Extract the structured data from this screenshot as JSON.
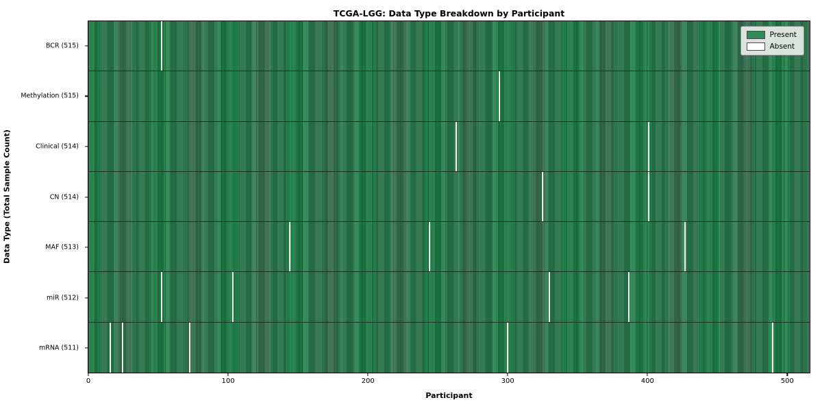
{
  "figure": {
    "title": "TCGA-LGG: Data Type Breakdown by Participant",
    "xlabel": "Participant",
    "ylabel": "Data Type (Total Sample Count)"
  },
  "legend": {
    "items": [
      {
        "name": "present",
        "label": "Present",
        "color": "#2e8b57"
      },
      {
        "name": "absent",
        "label": "Absent",
        "color": "#ffffff"
      }
    ]
  },
  "chart_data": {
    "type": "heatmap",
    "title": "TCGA-LGG: Data Type Breakdown by Participant",
    "xlabel": "Participant",
    "ylabel": "Data Type (Total Sample Count)",
    "x_ticks": [
      0,
      100,
      200,
      300,
      400,
      500
    ],
    "x_range": [
      -0.5,
      516.5
    ],
    "total_participants": 516,
    "present_color": "#2e8b57",
    "absent_color": "#ffffff",
    "grid": false,
    "legend_position": "upper right",
    "rows": [
      {
        "label": "BCR (515)",
        "data_type": "BCR",
        "present_count": 515,
        "missing_participants": [
          52
        ]
      },
      {
        "label": "Methylation (515)",
        "data_type": "Methylation",
        "present_count": 515,
        "missing_participants": [
          294
        ]
      },
      {
        "label": "Clinical (514)",
        "data_type": "Clinical",
        "present_count": 514,
        "missing_participants": [
          263,
          401
        ]
      },
      {
        "label": "CN (514)",
        "data_type": "CN",
        "present_count": 514,
        "missing_participants": [
          325,
          401
        ]
      },
      {
        "label": "MAF (513)",
        "data_type": "MAF",
        "present_count": 513,
        "missing_participants": [
          144,
          244,
          427
        ]
      },
      {
        "label": "miR (512)",
        "data_type": "miR",
        "present_count": 512,
        "missing_participants": [
          52,
          103,
          330,
          387
        ]
      },
      {
        "label": "mRNA (511)",
        "data_type": "mRNA",
        "present_count": 511,
        "missing_participants": [
          15,
          24,
          72,
          300,
          490
        ]
      }
    ]
  }
}
